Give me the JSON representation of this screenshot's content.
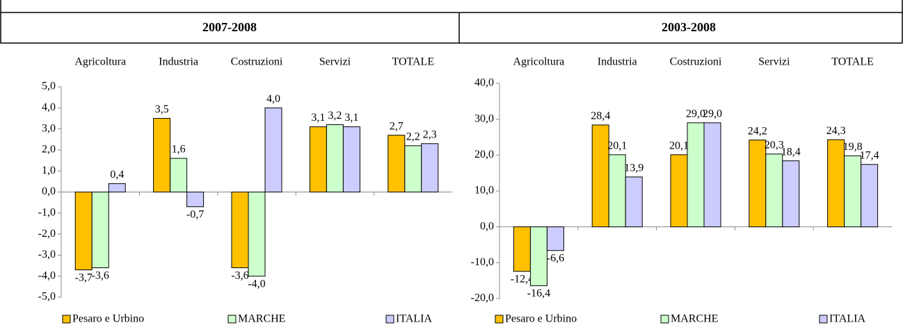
{
  "chart_data": [
    {
      "type": "bar",
      "title": "2007-2008",
      "categories": [
        "Agricoltura",
        "Industria",
        "Costruzioni",
        "Servizi",
        "TOTALE"
      ],
      "series": [
        {
          "name": "Pesaro e Urbino",
          "color": "#ffc000",
          "values": [
            -3.7,
            3.5,
            -3.6,
            3.1,
            2.7
          ],
          "value_labels": [
            "-3,7",
            "3,5",
            "-3,6",
            "3,1",
            "2,7"
          ]
        },
        {
          "name": "MARCHE",
          "color": "#ccffcc",
          "values": [
            -3.6,
            1.6,
            -4.0,
            3.2,
            2.2
          ],
          "value_labels": [
            "-3,6",
            "1,6",
            "-4,0",
            "3,2",
            "2,2"
          ]
        },
        {
          "name": "ITALIA",
          "color": "#ccccff",
          "values": [
            0.4,
            -0.7,
            4.0,
            3.1,
            2.3
          ],
          "value_labels": [
            "0,4",
            "-0,7",
            "4,0",
            "3,1",
            "2,3"
          ]
        }
      ],
      "ylim": [
        -5,
        5
      ],
      "yticks": [
        {
          "value": -5,
          "label": "-5,0"
        },
        {
          "value": -4,
          "label": "-4,0"
        },
        {
          "value": -3,
          "label": "-3,0"
        },
        {
          "value": -2,
          "label": "-2,0"
        },
        {
          "value": -1,
          "label": "-1,0"
        },
        {
          "value": 0,
          "label": "0,0"
        },
        {
          "value": 1,
          "label": "1,0"
        },
        {
          "value": 2,
          "label": "2,0"
        },
        {
          "value": 3,
          "label": "3,0"
        },
        {
          "value": 4,
          "label": "4,0"
        },
        {
          "value": 5,
          "label": "5,0"
        }
      ],
      "legend": "bottom"
    },
    {
      "type": "bar",
      "title": "2003-2008",
      "categories": [
        "Agricoltura",
        "Industria",
        "Costruzioni",
        "Servizi",
        "TOTALE"
      ],
      "series": [
        {
          "name": "Pesaro e Urbino",
          "color": "#ffc000",
          "values": [
            -12.4,
            28.4,
            20.1,
            24.2,
            24.3
          ],
          "value_labels": [
            "-12,4",
            "28,4",
            "20,1",
            "24,2",
            "24,3"
          ]
        },
        {
          "name": "MARCHE",
          "color": "#ccffcc",
          "values": [
            -16.4,
            20.1,
            29.0,
            20.3,
            19.8
          ],
          "value_labels": [
            "-16,4",
            "20,1",
            "29,0",
            "20,3",
            "19,8"
          ]
        },
        {
          "name": "ITALIA",
          "color": "#ccccff",
          "values": [
            -6.6,
            13.9,
            29.0,
            18.4,
            17.4
          ],
          "value_labels": [
            "-6,6",
            "13,9",
            "29,0",
            "18,4",
            "17,4"
          ]
        }
      ],
      "ylim": [
        -20,
        40
      ],
      "yticks": [
        {
          "value": -20,
          "label": "-20,0"
        },
        {
          "value": -10,
          "label": "-10,0"
        },
        {
          "value": 0,
          "label": "0,0"
        },
        {
          "value": 10,
          "label": "10,0"
        },
        {
          "value": 20,
          "label": "20,0"
        },
        {
          "value": 30,
          "label": "30,0"
        },
        {
          "value": 40,
          "label": "40,0"
        }
      ],
      "legend": "bottom"
    }
  ]
}
